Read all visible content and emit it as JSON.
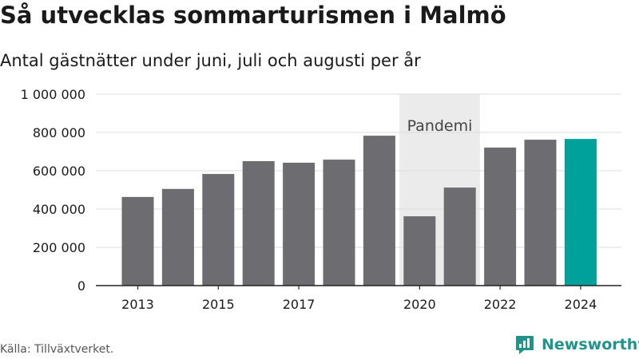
{
  "header": {
    "title": "Så utvecklas sommarturismen i Malmö",
    "subtitle": "Antal gästnätter under juni, juli och augusti per år"
  },
  "footer": {
    "source": "Källa: Tillväxtverket.",
    "brand": "Newsworthy"
  },
  "colors": {
    "bar": "#6d6c71",
    "highlight": "#00a19a",
    "pandemic_band": "#ebebeb",
    "brand": "#20948b"
  },
  "chart_data": {
    "type": "bar",
    "title": "Så utvecklas sommarturismen i Malmö",
    "subtitle": "Antal gästnätter under juni, juli och augusti per år",
    "categories": [
      "2013",
      "2014",
      "2015",
      "2016",
      "2017",
      "2018",
      "2019",
      "2020",
      "2021",
      "2022",
      "2023",
      "2024"
    ],
    "values": [
      463000,
      505000,
      583000,
      650000,
      642000,
      658000,
      783000,
      362000,
      512000,
      721000,
      762000,
      766000
    ],
    "highlight_category": "2024",
    "x_tick_labels": [
      "2013",
      "",
      "2015",
      "",
      "2017",
      "",
      "",
      "2020",
      "",
      "2022",
      "",
      "2024"
    ],
    "y_ticks": [
      0,
      200000,
      400000,
      600000,
      800000,
      1000000
    ],
    "y_tick_labels": [
      "0",
      "200 000",
      "400 000",
      "600 000",
      "800 000",
      "1 000 000"
    ],
    "ylim": [
      0,
      1000000
    ],
    "grid": true,
    "annotation": {
      "label": "Pandemi",
      "from": "2020",
      "to": "2021"
    }
  }
}
